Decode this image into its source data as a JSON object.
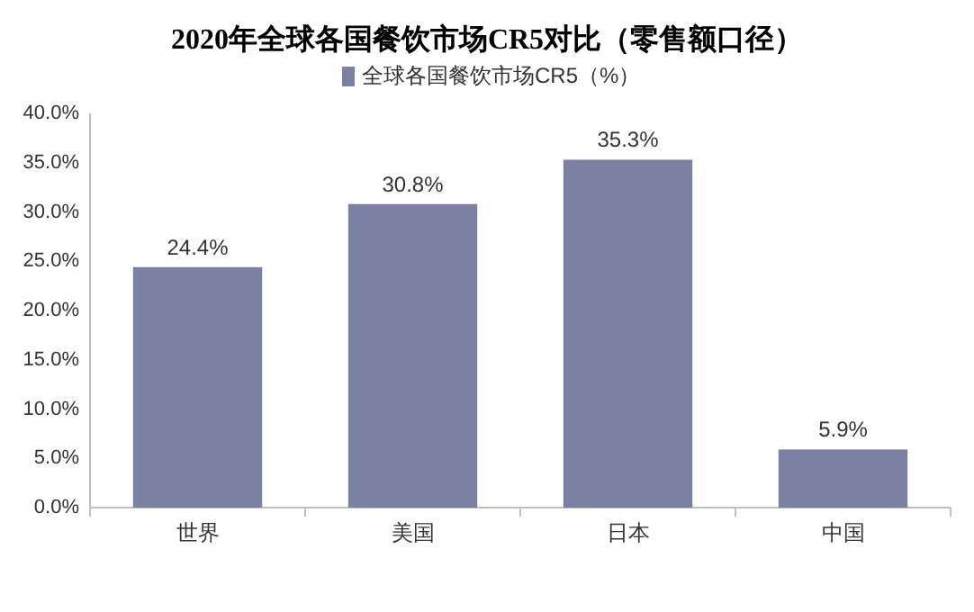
{
  "chart_data": {
    "type": "bar",
    "title": "2020年全球各国餐饮市场CR5对比（零售额口径）",
    "categories": [
      "世界",
      "美国",
      "日本",
      "中国"
    ],
    "series": [
      {
        "name": "全球各国餐饮市场CR5（%）",
        "color": "#7a81a3",
        "values": [
          24.4,
          30.8,
          35.3,
          5.9
        ],
        "value_labels": [
          "24.4%",
          "30.8%",
          "35.3%",
          "5.9%"
        ]
      }
    ],
    "ylim": [
      0,
      40
    ],
    "yticks": [
      {
        "value": 0,
        "label": "0.0%"
      },
      {
        "value": 5,
        "label": "5.0%"
      },
      {
        "value": 10,
        "label": "10.0%"
      },
      {
        "value": 15,
        "label": "15.0%"
      },
      {
        "value": 20,
        "label": "20.0%"
      },
      {
        "value": 25,
        "label": "25.0%"
      },
      {
        "value": 30,
        "label": "30.0%"
      },
      {
        "value": 35,
        "label": "35.0%"
      },
      {
        "value": 40,
        "label": "40.0%"
      }
    ],
    "legend": "top"
  }
}
